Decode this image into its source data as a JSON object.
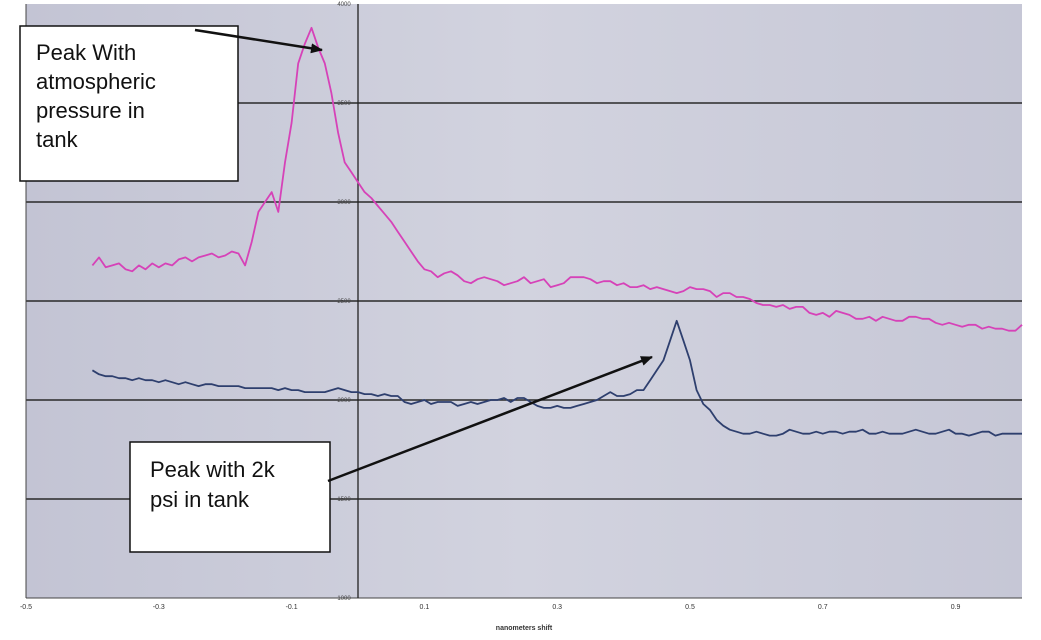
{
  "chart_data": {
    "type": "line",
    "title": "",
    "xlabel": "nanometers shift",
    "ylabel": "",
    "xlim": [
      -0.5,
      1.0
    ],
    "ylim": [
      1000,
      4000
    ],
    "grid": true,
    "x_ticks": [
      "-0.5",
      "-0.3",
      "-0.1",
      "0.1",
      "0.3",
      "0.5",
      "0.7",
      "0.9"
    ],
    "y_ticks": [
      "1000",
      "1500",
      "2000",
      "2500",
      "3000",
      "3500",
      "4000"
    ],
    "series": [
      {
        "color": "#d642b8",
        "x": [
          -0.4,
          -0.39,
          -0.38,
          -0.37,
          -0.36,
          -0.35,
          -0.34,
          -0.33,
          -0.32,
          -0.31,
          -0.3,
          -0.29,
          -0.28,
          -0.27,
          -0.26,
          -0.25,
          -0.24,
          -0.23,
          -0.22,
          -0.21,
          -0.2,
          -0.19,
          -0.18,
          -0.17,
          -0.16,
          -0.15,
          -0.14,
          -0.13,
          -0.12,
          -0.11,
          -0.1,
          -0.09,
          -0.08,
          -0.07,
          -0.06,
          -0.05,
          -0.04,
          -0.03,
          -0.02,
          -0.01,
          0.0,
          0.01,
          0.02,
          0.03,
          0.04,
          0.05,
          0.06,
          0.07,
          0.08,
          0.09,
          0.1,
          0.11,
          0.12,
          0.13,
          0.14,
          0.15,
          0.16,
          0.17,
          0.18,
          0.19,
          0.2,
          0.21,
          0.22,
          0.23,
          0.24,
          0.25,
          0.26,
          0.27,
          0.28,
          0.29,
          0.3,
          0.31,
          0.32,
          0.33,
          0.34,
          0.35,
          0.36,
          0.37,
          0.38,
          0.39,
          0.4,
          0.41,
          0.42,
          0.43,
          0.44,
          0.45,
          0.46,
          0.47,
          0.48,
          0.49,
          0.5,
          0.51,
          0.52,
          0.53,
          0.54,
          0.55,
          0.56,
          0.57,
          0.58,
          0.59,
          0.6,
          0.61,
          0.62,
          0.63,
          0.64,
          0.65,
          0.66,
          0.67,
          0.68,
          0.69,
          0.7,
          0.71,
          0.72,
          0.73,
          0.74,
          0.75,
          0.76,
          0.77,
          0.78,
          0.79,
          0.8,
          0.81,
          0.82,
          0.83,
          0.84,
          0.85,
          0.86,
          0.87,
          0.88,
          0.89,
          0.9,
          0.91,
          0.92,
          0.93,
          0.94,
          0.95,
          0.96,
          0.97,
          0.98,
          0.99,
          1.0
        ],
        "y": [
          2680,
          2720,
          2670,
          2680,
          2690,
          2660,
          2650,
          2680,
          2660,
          2690,
          2670,
          2690,
          2680,
          2710,
          2720,
          2700,
          2720,
          2730,
          2740,
          2720,
          2730,
          2750,
          2740,
          2680,
          2800,
          2950,
          3000,
          3050,
          2950,
          3200,
          3400,
          3700,
          3800,
          3880,
          3780,
          3700,
          3550,
          3350,
          3200,
          3150,
          3100,
          3050,
          3020,
          2980,
          2940,
          2900,
          2850,
          2800,
          2750,
          2700,
          2660,
          2650,
          2620,
          2640,
          2650,
          2630,
          2600,
          2590,
          2610,
          2620,
          2610,
          2600,
          2580,
          2590,
          2600,
          2620,
          2590,
          2600,
          2610,
          2570,
          2580,
          2590,
          2620,
          2620,
          2620,
          2610,
          2590,
          2600,
          2600,
          2580,
          2590,
          2570,
          2570,
          2580,
          2560,
          2570,
          2560,
          2550,
          2540,
          2550,
          2570,
          2560,
          2560,
          2550,
          2520,
          2540,
          2540,
          2520,
          2520,
          2510,
          2490,
          2480,
          2480,
          2470,
          2480,
          2460,
          2470,
          2470,
          2440,
          2430,
          2440,
          2420,
          2450,
          2440,
          2430,
          2410,
          2410,
          2420,
          2400,
          2420,
          2410,
          2400,
          2400,
          2420,
          2420,
          2410,
          2410,
          2390,
          2380,
          2390,
          2380,
          2370,
          2380,
          2380,
          2360,
          2370,
          2360,
          2360,
          2350,
          2350,
          2380
        ]
      },
      {
        "color": "#2e3f6e",
        "x": [
          -0.4,
          -0.39,
          -0.38,
          -0.37,
          -0.36,
          -0.35,
          -0.34,
          -0.33,
          -0.32,
          -0.31,
          -0.3,
          -0.29,
          -0.28,
          -0.27,
          -0.26,
          -0.25,
          -0.24,
          -0.23,
          -0.22,
          -0.21,
          -0.2,
          -0.19,
          -0.18,
          -0.17,
          -0.16,
          -0.15,
          -0.14,
          -0.13,
          -0.12,
          -0.11,
          -0.1,
          -0.09,
          -0.08,
          -0.07,
          -0.06,
          -0.05,
          -0.04,
          -0.03,
          -0.02,
          -0.01,
          0.0,
          0.01,
          0.02,
          0.03,
          0.04,
          0.05,
          0.06,
          0.07,
          0.08,
          0.09,
          0.1,
          0.11,
          0.12,
          0.13,
          0.14,
          0.15,
          0.16,
          0.17,
          0.18,
          0.19,
          0.2,
          0.21,
          0.22,
          0.23,
          0.24,
          0.25,
          0.26,
          0.27,
          0.28,
          0.29,
          0.3,
          0.31,
          0.32,
          0.33,
          0.34,
          0.35,
          0.36,
          0.37,
          0.38,
          0.39,
          0.4,
          0.41,
          0.42,
          0.43,
          0.44,
          0.45,
          0.46,
          0.47,
          0.48,
          0.49,
          0.5,
          0.51,
          0.52,
          0.53,
          0.54,
          0.55,
          0.56,
          0.57,
          0.58,
          0.59,
          0.6,
          0.61,
          0.62,
          0.63,
          0.64,
          0.65,
          0.66,
          0.67,
          0.68,
          0.69,
          0.7,
          0.71,
          0.72,
          0.73,
          0.74,
          0.75,
          0.76,
          0.77,
          0.78,
          0.79,
          0.8,
          0.81,
          0.82,
          0.83,
          0.84,
          0.85,
          0.86,
          0.87,
          0.88,
          0.89,
          0.9,
          0.91,
          0.92,
          0.93,
          0.94,
          0.95,
          0.96,
          0.97,
          0.98,
          0.99,
          1.0
        ],
        "y": [
          2150,
          2130,
          2120,
          2120,
          2110,
          2110,
          2100,
          2110,
          2100,
          2100,
          2090,
          2100,
          2090,
          2080,
          2090,
          2080,
          2070,
          2080,
          2080,
          2070,
          2070,
          2070,
          2070,
          2060,
          2060,
          2060,
          2060,
          2060,
          2050,
          2060,
          2050,
          2050,
          2040,
          2040,
          2040,
          2040,
          2050,
          2060,
          2050,
          2040,
          2040,
          2030,
          2030,
          2020,
          2030,
          2020,
          2020,
          1990,
          1980,
          1990,
          2000,
          1980,
          1990,
          1990,
          1990,
          1970,
          1980,
          1990,
          1980,
          1990,
          2000,
          2000,
          2010,
          1990,
          2010,
          2010,
          1990,
          1970,
          1960,
          1960,
          1970,
          1960,
          1960,
          1970,
          1980,
          1990,
          2000,
          2020,
          2040,
          2020,
          2020,
          2030,
          2050,
          2050,
          2100,
          2150,
          2200,
          2300,
          2400,
          2300,
          2200,
          2050,
          1980,
          1950,
          1900,
          1870,
          1850,
          1840,
          1830,
          1830,
          1840,
          1830,
          1820,
          1820,
          1830,
          1850,
          1840,
          1830,
          1830,
          1840,
          1830,
          1840,
          1840,
          1830,
          1840,
          1840,
          1850,
          1830,
          1830,
          1840,
          1830,
          1830,
          1830,
          1840,
          1850,
          1840,
          1830,
          1830,
          1840,
          1850,
          1830,
          1830,
          1820,
          1830,
          1840,
          1840,
          1820,
          1830,
          1830,
          1830,
          1830
        ]
      }
    ],
    "annotations": [
      {
        "lines": [
          "Peak With",
          "atmospheric",
          "pressure in",
          "tank"
        ],
        "point_to": {
          "x": 0.0,
          "y": 3880
        }
      },
      {
        "lines": [
          "Peak with 2k",
          "psi in tank"
        ],
        "point_to": {
          "x": 0.47,
          "y": 2230
        }
      }
    ]
  }
}
